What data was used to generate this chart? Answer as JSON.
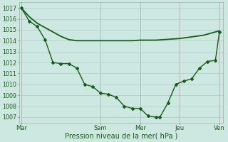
{
  "title": "",
  "xlabel": "Pression niveau de la mer( hPa )",
  "ylabel": "",
  "bg_color": "#cce8e0",
  "grid_color": "#aacccc",
  "vline_color": "#cc8888",
  "line_color": "#1a5c1a",
  "ylim": [
    1006.5,
    1017.5
  ],
  "yticks": [
    1007,
    1008,
    1009,
    1010,
    1011,
    1012,
    1013,
    1014,
    1015,
    1016,
    1017
  ],
  "x_day_positions": [
    0,
    4,
    6,
    8,
    10
  ],
  "x_day_labels": [
    "Mar",
    "Sam",
    "Mer",
    "Jeu",
    "Ven"
  ],
  "xlim": [
    -0.1,
    10.2
  ],
  "line1_x": [
    0,
    0.4,
    0.8,
    1.2,
    1.6,
    2.0,
    2.4,
    2.8,
    3.2,
    3.6,
    4.0,
    4.4,
    4.8,
    5.2,
    5.6,
    6.0,
    6.4,
    6.8,
    7.2,
    7.6,
    8.0,
    8.4,
    8.8,
    9.2,
    9.6,
    10.0
  ],
  "line1_y": [
    1017.0,
    1016.2,
    1015.6,
    1015.2,
    1014.8,
    1014.4,
    1014.1,
    1014.0,
    1014.0,
    1014.0,
    1014.0,
    1014.0,
    1014.0,
    1014.0,
    1014.0,
    1014.05,
    1014.05,
    1014.05,
    1014.1,
    1014.15,
    1014.2,
    1014.3,
    1014.4,
    1014.5,
    1014.7,
    1014.9
  ],
  "line2_x": [
    0,
    0.4,
    0.8,
    1.2,
    1.6,
    2.0,
    2.4,
    2.8,
    3.2,
    3.6,
    4.0,
    4.4,
    4.8,
    5.2,
    5.6,
    6.0,
    6.4,
    6.8,
    7.0,
    7.4,
    7.8,
    8.2,
    8.6,
    9.0,
    9.4,
    9.8,
    10.0
  ],
  "line2_y": [
    1017.0,
    1015.8,
    1015.3,
    1014.1,
    1012.0,
    1011.9,
    1011.9,
    1011.5,
    1010.0,
    1009.8,
    1009.2,
    1009.1,
    1008.8,
    1008.0,
    1007.8,
    1007.8,
    1007.1,
    1007.0,
    1007.0,
    1008.3,
    1010.0,
    1010.3,
    1010.5,
    1011.5,
    1012.1,
    1012.2,
    1014.8
  ]
}
